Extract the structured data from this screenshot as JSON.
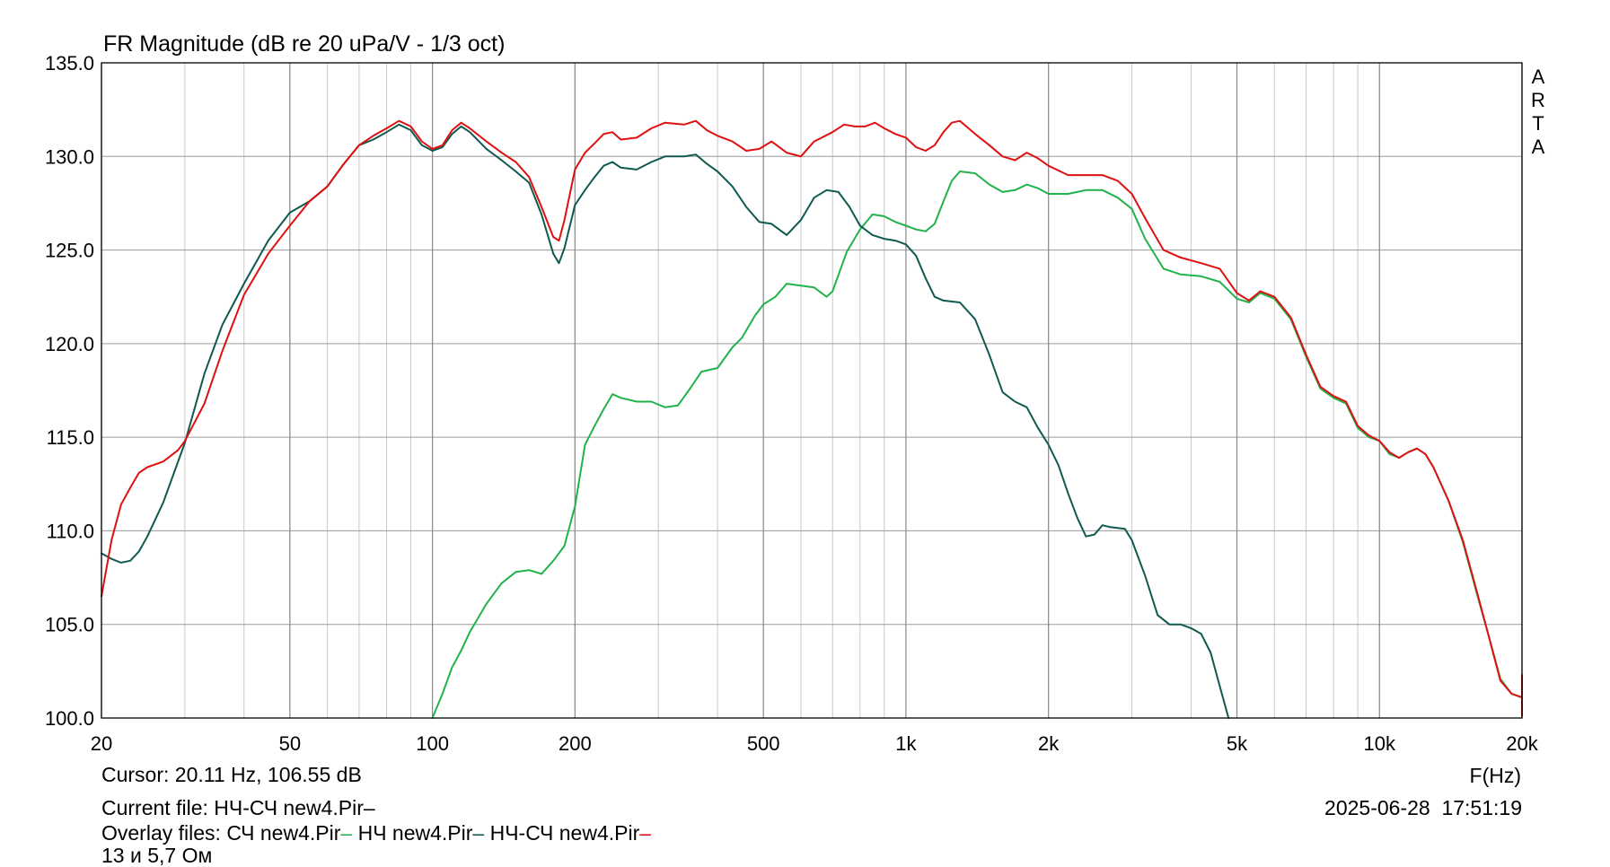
{
  "chart_data": {
    "type": "line",
    "title": "FR Magnitude (dB re 20 uPa/V - 1/3 oct)",
    "xlabel": "F(Hz)",
    "ylabel": "",
    "x_scale": "log",
    "xlim": [
      20,
      20000
    ],
    "ylim": [
      100,
      135
    ],
    "grid": true,
    "watermark": "ARTA",
    "y_ticks": [
      "100.0",
      "105.0",
      "110.0",
      "115.0",
      "120.0",
      "125.0",
      "130.0",
      "135.0"
    ],
    "x_ticks": [
      {
        "value": 20,
        "label": "20"
      },
      {
        "value": 50,
        "label": "50"
      },
      {
        "value": 100,
        "label": "100"
      },
      {
        "value": 200,
        "label": "200"
      },
      {
        "value": 500,
        "label": "500"
      },
      {
        "value": 1000,
        "label": "1k"
      },
      {
        "value": 2000,
        "label": "2k"
      },
      {
        "value": 5000,
        "label": "5k"
      },
      {
        "value": 10000,
        "label": "10k"
      },
      {
        "value": 20000,
        "label": "20k"
      }
    ],
    "series": [
      {
        "name": "СЧ new4.Pir",
        "color": "#22b24c",
        "points": [
          [
            100,
            100
          ],
          [
            105,
            101.3
          ],
          [
            110,
            102.7
          ],
          [
            115,
            103.6
          ],
          [
            120,
            104.6
          ],
          [
            130,
            106.1
          ],
          [
            140,
            107.2
          ],
          [
            150,
            107.8
          ],
          [
            160,
            107.9
          ],
          [
            170,
            107.7
          ],
          [
            180,
            108.4
          ],
          [
            190,
            109.2
          ],
          [
            200,
            111.3
          ],
          [
            210,
            114.6
          ],
          [
            220,
            115.6
          ],
          [
            230,
            116.5
          ],
          [
            240,
            117.3
          ],
          [
            250,
            117.1
          ],
          [
            270,
            116.9
          ],
          [
            290,
            116.9
          ],
          [
            310,
            116.6
          ],
          [
            330,
            116.7
          ],
          [
            350,
            117.6
          ],
          [
            370,
            118.5
          ],
          [
            400,
            118.7
          ],
          [
            430,
            119.8
          ],
          [
            450,
            120.3
          ],
          [
            480,
            121.5
          ],
          [
            500,
            122.1
          ],
          [
            530,
            122.5
          ],
          [
            560,
            123.2
          ],
          [
            600,
            123.1
          ],
          [
            640,
            123.0
          ],
          [
            680,
            122.5
          ],
          [
            700,
            122.8
          ],
          [
            750,
            124.9
          ],
          [
            800,
            126.1
          ],
          [
            850,
            126.9
          ],
          [
            900,
            126.8
          ],
          [
            950,
            126.5
          ],
          [
            1000,
            126.3
          ],
          [
            1050,
            126.1
          ],
          [
            1100,
            126.0
          ],
          [
            1150,
            126.4
          ],
          [
            1200,
            127.6
          ],
          [
            1250,
            128.7
          ],
          [
            1300,
            129.2
          ],
          [
            1400,
            129.1
          ],
          [
            1500,
            128.5
          ],
          [
            1600,
            128.1
          ],
          [
            1700,
            128.2
          ],
          [
            1800,
            128.5
          ],
          [
            1900,
            128.3
          ],
          [
            2000,
            128.0
          ],
          [
            2200,
            128.0
          ],
          [
            2400,
            128.2
          ],
          [
            2600,
            128.2
          ],
          [
            2800,
            127.8
          ],
          [
            3000,
            127.2
          ],
          [
            3200,
            125.6
          ],
          [
            3500,
            124.0
          ],
          [
            3800,
            123.7
          ],
          [
            4200,
            123.6
          ],
          [
            4600,
            123.3
          ],
          [
            5000,
            122.4
          ],
          [
            5300,
            122.2
          ],
          [
            5600,
            122.7
          ],
          [
            6000,
            122.4
          ],
          [
            6500,
            121.3
          ],
          [
            7000,
            119.3
          ],
          [
            7500,
            117.6
          ],
          [
            8000,
            117.1
          ],
          [
            8500,
            116.8
          ],
          [
            9000,
            115.5
          ],
          [
            9500,
            115.0
          ],
          [
            10000,
            114.8
          ],
          [
            10500,
            114.1
          ],
          [
            11000,
            113.9
          ],
          [
            11500,
            114.2
          ],
          [
            12000,
            114.4
          ],
          [
            12500,
            114.1
          ],
          [
            13000,
            113.4
          ],
          [
            14000,
            111.6
          ],
          [
            15000,
            109.4
          ],
          [
            16000,
            106.8
          ],
          [
            17000,
            104.4
          ],
          [
            18000,
            102.1
          ],
          [
            19000,
            101.3
          ],
          [
            20000,
            101.1
          ]
        ]
      },
      {
        "name": "НЧ new4.Pir",
        "color": "#0f5a50",
        "points": [
          [
            20,
            108.8
          ],
          [
            21,
            108.5
          ],
          [
            22,
            108.3
          ],
          [
            23,
            108.4
          ],
          [
            24,
            108.9
          ],
          [
            25,
            109.7
          ],
          [
            27,
            111.5
          ],
          [
            30,
            114.7
          ],
          [
            33,
            118.4
          ],
          [
            36,
            121.0
          ],
          [
            40,
            123.2
          ],
          [
            45,
            125.5
          ],
          [
            50,
            127.0
          ],
          [
            55,
            127.6
          ],
          [
            60,
            128.4
          ],
          [
            65,
            129.6
          ],
          [
            70,
            130.6
          ],
          [
            75,
            130.9
          ],
          [
            80,
            131.3
          ],
          [
            85,
            131.7
          ],
          [
            90,
            131.4
          ],
          [
            95,
            130.6
          ],
          [
            100,
            130.3
          ],
          [
            105,
            130.5
          ],
          [
            110,
            131.2
          ],
          [
            115,
            131.6
          ],
          [
            120,
            131.3
          ],
          [
            130,
            130.4
          ],
          [
            140,
            129.8
          ],
          [
            150,
            129.2
          ],
          [
            160,
            128.6
          ],
          [
            170,
            126.9
          ],
          [
            180,
            124.8
          ],
          [
            185,
            124.3
          ],
          [
            190,
            125.1
          ],
          [
            200,
            127.4
          ],
          [
            210,
            128.2
          ],
          [
            220,
            128.9
          ],
          [
            230,
            129.5
          ],
          [
            240,
            129.7
          ],
          [
            250,
            129.4
          ],
          [
            270,
            129.3
          ],
          [
            290,
            129.7
          ],
          [
            310,
            130.0
          ],
          [
            340,
            130.0
          ],
          [
            360,
            130.1
          ],
          [
            380,
            129.6
          ],
          [
            400,
            129.2
          ],
          [
            430,
            128.4
          ],
          [
            460,
            127.3
          ],
          [
            490,
            126.5
          ],
          [
            520,
            126.4
          ],
          [
            560,
            125.8
          ],
          [
            600,
            126.6
          ],
          [
            640,
            127.8
          ],
          [
            680,
            128.2
          ],
          [
            720,
            128.1
          ],
          [
            760,
            127.3
          ],
          [
            800,
            126.3
          ],
          [
            850,
            125.8
          ],
          [
            900,
            125.6
          ],
          [
            950,
            125.5
          ],
          [
            1000,
            125.3
          ],
          [
            1050,
            124.7
          ],
          [
            1100,
            123.5
          ],
          [
            1150,
            122.5
          ],
          [
            1200,
            122.3
          ],
          [
            1300,
            122.2
          ],
          [
            1400,
            121.3
          ],
          [
            1500,
            119.4
          ],
          [
            1600,
            117.4
          ],
          [
            1700,
            116.9
          ],
          [
            1800,
            116.6
          ],
          [
            1900,
            115.5
          ],
          [
            2000,
            114.6
          ],
          [
            2100,
            113.5
          ],
          [
            2200,
            112.0
          ],
          [
            2300,
            110.7
          ],
          [
            2400,
            109.7
          ],
          [
            2500,
            109.8
          ],
          [
            2600,
            110.3
          ],
          [
            2700,
            110.2
          ],
          [
            2900,
            110.1
          ],
          [
            3000,
            109.5
          ],
          [
            3200,
            107.6
          ],
          [
            3400,
            105.5
          ],
          [
            3600,
            105.0
          ],
          [
            3800,
            105.0
          ],
          [
            4000,
            104.8
          ],
          [
            4200,
            104.5
          ],
          [
            4400,
            103.5
          ],
          [
            4600,
            101.7
          ],
          [
            4800,
            100
          ]
        ]
      },
      {
        "name": "НЧ-СЧ new4.Pir",
        "color": "#e01010",
        "points": [
          [
            20,
            106.5
          ],
          [
            21,
            109.5
          ],
          [
            22,
            111.4
          ],
          [
            23,
            112.3
          ],
          [
            24,
            113.1
          ],
          [
            25,
            113.4
          ],
          [
            27,
            113.7
          ],
          [
            29,
            114.3
          ],
          [
            30,
            114.8
          ],
          [
            33,
            116.8
          ],
          [
            36,
            119.6
          ],
          [
            40,
            122.6
          ],
          [
            45,
            124.8
          ],
          [
            50,
            126.3
          ],
          [
            55,
            127.6
          ],
          [
            60,
            128.4
          ],
          [
            65,
            129.6
          ],
          [
            70,
            130.6
          ],
          [
            75,
            131.1
          ],
          [
            80,
            131.5
          ],
          [
            85,
            131.9
          ],
          [
            90,
            131.6
          ],
          [
            95,
            130.8
          ],
          [
            100,
            130.4
          ],
          [
            105,
            130.6
          ],
          [
            110,
            131.4
          ],
          [
            115,
            131.8
          ],
          [
            120,
            131.5
          ],
          [
            130,
            130.8
          ],
          [
            140,
            130.2
          ],
          [
            150,
            129.7
          ],
          [
            160,
            128.9
          ],
          [
            170,
            127.3
          ],
          [
            180,
            125.7
          ],
          [
            185,
            125.5
          ],
          [
            190,
            126.6
          ],
          [
            200,
            129.3
          ],
          [
            210,
            130.2
          ],
          [
            220,
            130.7
          ],
          [
            230,
            131.2
          ],
          [
            240,
            131.3
          ],
          [
            250,
            130.9
          ],
          [
            270,
            131.0
          ],
          [
            290,
            131.5
          ],
          [
            310,
            131.8
          ],
          [
            340,
            131.7
          ],
          [
            360,
            131.9
          ],
          [
            380,
            131.4
          ],
          [
            400,
            131.1
          ],
          [
            430,
            130.8
          ],
          [
            460,
            130.3
          ],
          [
            490,
            130.4
          ],
          [
            520,
            130.8
          ],
          [
            560,
            130.2
          ],
          [
            600,
            130.0
          ],
          [
            640,
            130.8
          ],
          [
            700,
            131.3
          ],
          [
            740,
            131.7
          ],
          [
            780,
            131.6
          ],
          [
            820,
            131.6
          ],
          [
            860,
            131.8
          ],
          [
            900,
            131.5
          ],
          [
            950,
            131.2
          ],
          [
            1000,
            131.0
          ],
          [
            1050,
            130.5
          ],
          [
            1100,
            130.3
          ],
          [
            1150,
            130.6
          ],
          [
            1200,
            131.3
          ],
          [
            1250,
            131.8
          ],
          [
            1300,
            131.9
          ],
          [
            1400,
            131.2
          ],
          [
            1500,
            130.6
          ],
          [
            1600,
            130.0
          ],
          [
            1700,
            129.8
          ],
          [
            1800,
            130.2
          ],
          [
            1900,
            129.9
          ],
          [
            2000,
            129.5
          ],
          [
            2200,
            129.0
          ],
          [
            2400,
            129.0
          ],
          [
            2600,
            129.0
          ],
          [
            2800,
            128.7
          ],
          [
            3000,
            128.0
          ],
          [
            3200,
            126.7
          ],
          [
            3500,
            125.0
          ],
          [
            3800,
            124.6
          ],
          [
            4200,
            124.3
          ],
          [
            4600,
            124.0
          ],
          [
            5000,
            122.7
          ],
          [
            5300,
            122.3
          ],
          [
            5600,
            122.8
          ],
          [
            6000,
            122.5
          ],
          [
            6500,
            121.4
          ],
          [
            7000,
            119.4
          ],
          [
            7500,
            117.7
          ],
          [
            8000,
            117.2
          ],
          [
            8500,
            116.9
          ],
          [
            9000,
            115.6
          ],
          [
            9500,
            115.1
          ],
          [
            10000,
            114.8
          ],
          [
            10500,
            114.2
          ],
          [
            11000,
            113.9
          ],
          [
            11500,
            114.2
          ],
          [
            12000,
            114.4
          ],
          [
            12500,
            114.1
          ],
          [
            13000,
            113.4
          ],
          [
            14000,
            111.6
          ],
          [
            15000,
            109.5
          ],
          [
            16000,
            106.9
          ],
          [
            17000,
            104.4
          ],
          [
            18000,
            102.0
          ],
          [
            19000,
            101.3
          ],
          [
            20000,
            101.1
          ],
          [
            21000,
            101.5
          ],
          [
            22000,
            102.3
          ],
          [
            23000,
            101.7
          ],
          [
            24000,
            100.8
          ],
          [
            25000,
            100.1
          ]
        ]
      }
    ]
  },
  "footer": {
    "cursor": "Cursor: 20.11 Hz, 106.55 dB",
    "current_file_label": "Current file: НЧ-СЧ new4.Pir",
    "current_file_marker": "–",
    "overlay_label": "Overlay files:",
    "overlay_1": "СЧ new4.Pir",
    "overlay_2": "НЧ new4.Pir",
    "overlay_3": "НЧ-СЧ new4.Pir",
    "marker": "–",
    "note": "13 и 5,7 Ом",
    "timestamp": "2025-06-28  17:51:19"
  }
}
